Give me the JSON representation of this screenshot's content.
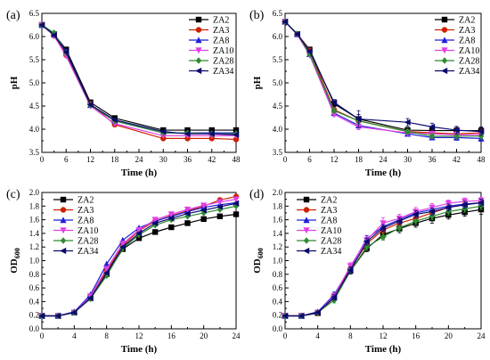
{
  "chart_data": [
    {
      "type": "line",
      "panel_label": "(a)",
      "xlabel": "Time (h)",
      "ylabel": "pH",
      "xlim": [
        0,
        48
      ],
      "ylim": [
        3.5,
        6.5
      ],
      "xticks": [
        0,
        6,
        12,
        18,
        24,
        30,
        36,
        42,
        48
      ],
      "yticks": [
        3.5,
        4.0,
        4.5,
        5.0,
        5.5,
        6.0,
        6.5
      ],
      "ytick_decimals": 1,
      "grid": false,
      "legend_position": "top-right",
      "x": [
        0,
        3,
        6,
        12,
        18,
        30,
        36,
        42,
        48
      ],
      "series": [
        {
          "name": "ZA2",
          "color": "#000000",
          "marker": "square",
          "values": [
            6.25,
            6.05,
            5.72,
            4.58,
            4.24,
            3.98,
            3.98,
            3.98,
            3.98
          ]
        },
        {
          "name": "ZA3",
          "color": "#cc2200",
          "marker": "circle",
          "values": [
            6.25,
            6.02,
            5.6,
            4.55,
            4.1,
            3.8,
            3.8,
            3.8,
            3.78
          ]
        },
        {
          "name": "ZA8",
          "color": "#1f1fd8",
          "marker": "triangle-up",
          "values": [
            6.25,
            6.05,
            5.68,
            4.52,
            4.18,
            3.92,
            3.92,
            3.92,
            3.92
          ]
        },
        {
          "name": "ZA10",
          "color": "#e040e8",
          "marker": "triangle-down",
          "values": [
            6.25,
            6.02,
            5.58,
            4.5,
            4.12,
            3.86,
            3.86,
            3.86,
            3.86
          ]
        },
        {
          "name": "ZA28",
          "color": "#2e8b2e",
          "marker": "diamond",
          "values": [
            6.25,
            6.08,
            5.65,
            4.52,
            4.18,
            3.92,
            3.92,
            3.9,
            3.9
          ]
        },
        {
          "name": "ZA34",
          "color": "#0a0a6e",
          "marker": "triangle-left",
          "values": [
            6.25,
            6.03,
            5.66,
            4.53,
            4.2,
            3.95,
            3.9,
            3.9,
            3.88
          ]
        }
      ]
    },
    {
      "type": "line",
      "panel_label": "(b)",
      "xlabel": "Time (h)",
      "ylabel": "pH",
      "xlim": [
        0,
        48
      ],
      "ylim": [
        3.5,
        6.5
      ],
      "xticks": [
        0,
        6,
        12,
        18,
        24,
        30,
        36,
        42,
        48
      ],
      "yticks": [
        3.5,
        4.0,
        4.5,
        5.0,
        5.5,
        6.0,
        6.5
      ],
      "ytick_decimals": 1,
      "grid": false,
      "legend_position": "top-right",
      "x": [
        0,
        3,
        6,
        12,
        18,
        30,
        36,
        42,
        48
      ],
      "series": [
        {
          "name": "ZA2",
          "color": "#000000",
          "marker": "square",
          "values": [
            6.32,
            6.05,
            5.72,
            4.55,
            4.22,
            3.98,
            3.97,
            3.97,
            3.97
          ],
          "errors": [
            0.02,
            0.03,
            0.03,
            0.06,
            0.1,
            0.06,
            0.08,
            0.08,
            0.08
          ]
        },
        {
          "name": "ZA3",
          "color": "#cc2200",
          "marker": "circle",
          "values": [
            6.32,
            6.05,
            5.7,
            4.42,
            4.18,
            3.95,
            3.92,
            3.9,
            3.92
          ],
          "errors": [
            0.02,
            0.03,
            0.03,
            0.05,
            0.08,
            0.05,
            0.06,
            0.08,
            0.08
          ]
        },
        {
          "name": "ZA8",
          "color": "#1f1fd8",
          "marker": "triangle-up",
          "values": [
            6.32,
            6.05,
            5.62,
            4.35,
            4.08,
            3.9,
            3.82,
            3.82,
            3.8
          ],
          "errors": [
            0.02,
            0.03,
            0.03,
            0.05,
            0.06,
            0.05,
            0.05,
            0.06,
            0.06
          ]
        },
        {
          "name": "ZA10",
          "color": "#e040e8",
          "marker": "triangle-down",
          "values": [
            6.32,
            6.04,
            5.6,
            4.32,
            4.05,
            3.92,
            3.9,
            3.88,
            3.88
          ],
          "errors": [
            0.02,
            0.03,
            0.03,
            0.05,
            0.06,
            0.05,
            0.05,
            0.06,
            0.06
          ]
        },
        {
          "name": "ZA28",
          "color": "#2e8b2e",
          "marker": "diamond",
          "values": [
            6.32,
            6.06,
            5.62,
            4.4,
            4.18,
            3.95,
            3.85,
            3.85,
            3.85
          ],
          "errors": [
            0.02,
            0.03,
            0.03,
            0.05,
            0.06,
            0.05,
            0.05,
            0.06,
            0.06
          ]
        },
        {
          "name": "ZA34",
          "color": "#0a0a6e",
          "marker": "triangle-left",
          "values": [
            6.32,
            6.05,
            5.68,
            4.58,
            4.22,
            4.15,
            4.05,
            3.98,
            3.95
          ],
          "errors": [
            0.02,
            0.03,
            0.03,
            0.06,
            0.18,
            0.08,
            0.08,
            0.08,
            0.08
          ]
        }
      ]
    },
    {
      "type": "line",
      "panel_label": "(c)",
      "xlabel": "Time (h)",
      "ylabel": "OD",
      "ylabel_subscript": "600",
      "xlim": [
        0,
        24
      ],
      "ylim": [
        0.0,
        2.0
      ],
      "xticks": [
        0,
        4,
        8,
        12,
        16,
        20,
        24
      ],
      "yticks": [
        0.0,
        0.2,
        0.4,
        0.6,
        0.8,
        1.0,
        1.2,
        1.4,
        1.6,
        1.8,
        2.0
      ],
      "ytick_decimals": 1,
      "grid": false,
      "legend_position": "top-left",
      "x": [
        0,
        2,
        4,
        6,
        8,
        10,
        12,
        14,
        16,
        18,
        20,
        22,
        24
      ],
      "series": [
        {
          "name": "ZA2",
          "color": "#000000",
          "marker": "square",
          "values": [
            0.19,
            0.19,
            0.24,
            0.45,
            0.8,
            1.17,
            1.33,
            1.42,
            1.49,
            1.55,
            1.61,
            1.65,
            1.68
          ]
        },
        {
          "name": "ZA3",
          "color": "#cc2200",
          "marker": "circle",
          "values": [
            0.19,
            0.19,
            0.24,
            0.48,
            0.85,
            1.22,
            1.44,
            1.58,
            1.66,
            1.73,
            1.8,
            1.89,
            1.94
          ]
        },
        {
          "name": "ZA8",
          "color": "#1f1fd8",
          "marker": "triangle-up",
          "values": [
            0.19,
            0.19,
            0.25,
            0.5,
            0.95,
            1.3,
            1.48,
            1.58,
            1.65,
            1.72,
            1.78,
            1.82,
            1.85
          ]
        },
        {
          "name": "ZA10",
          "color": "#e040e8",
          "marker": "triangle-down",
          "values": [
            0.19,
            0.19,
            0.24,
            0.48,
            0.88,
            1.25,
            1.45,
            1.6,
            1.68,
            1.75,
            1.81,
            1.86,
            1.9
          ]
        },
        {
          "name": "ZA28",
          "color": "#2e8b2e",
          "marker": "diamond",
          "values": [
            0.19,
            0.19,
            0.24,
            0.44,
            0.78,
            1.18,
            1.38,
            1.52,
            1.6,
            1.65,
            1.7,
            1.75,
            1.8
          ]
        },
        {
          "name": "ZA34",
          "color": "#0a0a6e",
          "marker": "triangle-left",
          "values": [
            0.19,
            0.19,
            0.24,
            0.45,
            0.82,
            1.2,
            1.4,
            1.55,
            1.62,
            1.69,
            1.74,
            1.79,
            1.84
          ]
        }
      ]
    },
    {
      "type": "line",
      "panel_label": "(d)",
      "xlabel": "Time (h)",
      "ylabel": "OD",
      "ylabel_subscript": "600",
      "xlim": [
        0,
        24
      ],
      "ylim": [
        0.0,
        2.0
      ],
      "xticks": [
        0,
        4,
        8,
        12,
        16,
        20,
        24
      ],
      "yticks": [
        0.0,
        0.2,
        0.4,
        0.6,
        0.8,
        1.0,
        1.2,
        1.4,
        1.6,
        1.8,
        2.0
      ],
      "ytick_decimals": 1,
      "grid": false,
      "legend_position": "top-left",
      "x": [
        0,
        2,
        4,
        6,
        8,
        10,
        12,
        14,
        16,
        18,
        20,
        22,
        24
      ],
      "series": [
        {
          "name": "ZA2",
          "color": "#000000",
          "marker": "square",
          "values": [
            0.19,
            0.19,
            0.23,
            0.46,
            0.85,
            1.18,
            1.38,
            1.47,
            1.55,
            1.62,
            1.67,
            1.71,
            1.75
          ],
          "errors": [
            0.01,
            0.01,
            0.02,
            0.04,
            0.04,
            0.05,
            0.06,
            0.06,
            0.06,
            0.07,
            0.06,
            0.06,
            0.07
          ]
        },
        {
          "name": "ZA3",
          "color": "#cc2200",
          "marker": "circle",
          "values": [
            0.19,
            0.19,
            0.24,
            0.48,
            0.88,
            1.25,
            1.45,
            1.55,
            1.62,
            1.7,
            1.78,
            1.82,
            1.85
          ],
          "errors": [
            0.01,
            0.01,
            0.02,
            0.04,
            0.04,
            0.05,
            0.05,
            0.05,
            0.05,
            0.05,
            0.05,
            0.05,
            0.05
          ]
        },
        {
          "name": "ZA8",
          "color": "#1f1fd8",
          "marker": "triangle-up",
          "values": [
            0.19,
            0.19,
            0.25,
            0.5,
            0.9,
            1.32,
            1.5,
            1.6,
            1.7,
            1.75,
            1.8,
            1.83,
            1.85
          ],
          "errors": [
            0.01,
            0.01,
            0.02,
            0.04,
            0.05,
            0.05,
            0.05,
            0.05,
            0.05,
            0.05,
            0.05,
            0.05,
            0.05
          ]
        },
        {
          "name": "ZA10",
          "color": "#e040e8",
          "marker": "triangle-down",
          "values": [
            0.19,
            0.19,
            0.24,
            0.48,
            0.92,
            1.3,
            1.55,
            1.62,
            1.72,
            1.78,
            1.84,
            1.87,
            1.88
          ],
          "errors": [
            0.01,
            0.01,
            0.02,
            0.04,
            0.05,
            0.06,
            0.08,
            0.06,
            0.06,
            0.06,
            0.05,
            0.05,
            0.05
          ]
        },
        {
          "name": "ZA28",
          "color": "#2e8b2e",
          "marker": "diamond",
          "values": [
            0.19,
            0.19,
            0.24,
            0.42,
            0.85,
            1.2,
            1.35,
            1.48,
            1.58,
            1.65,
            1.72,
            1.76,
            1.8
          ],
          "errors": [
            0.01,
            0.01,
            0.02,
            0.04,
            0.05,
            0.05,
            0.05,
            0.05,
            0.05,
            0.05,
            0.05,
            0.05,
            0.05
          ]
        },
        {
          "name": "ZA34",
          "color": "#0a0a6e",
          "marker": "triangle-left",
          "values": [
            0.19,
            0.19,
            0.24,
            0.46,
            0.86,
            1.28,
            1.48,
            1.58,
            1.68,
            1.72,
            1.78,
            1.82,
            1.85
          ],
          "errors": [
            0.01,
            0.01,
            0.02,
            0.04,
            0.05,
            0.05,
            0.05,
            0.05,
            0.05,
            0.05,
            0.05,
            0.05,
            0.05
          ]
        }
      ]
    }
  ]
}
